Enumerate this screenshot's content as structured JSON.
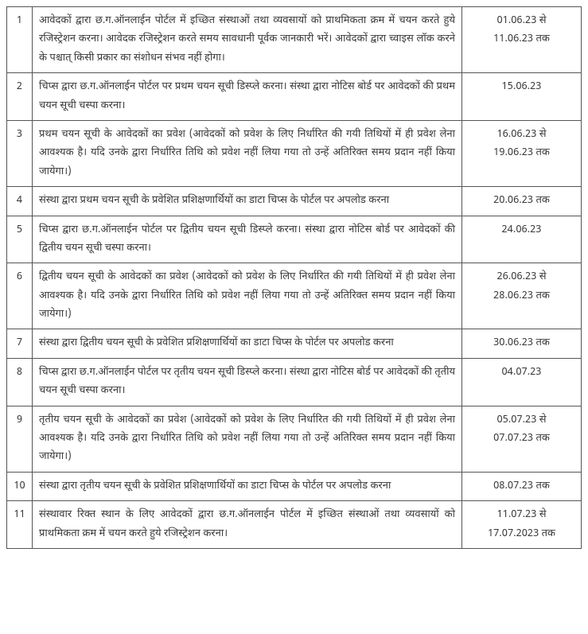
{
  "table": {
    "rows": [
      {
        "sn": "1",
        "desc": "आवेदकों द्वारा छ.ग.ऑनलाईन पोर्टल में इच्छित संस्थाओं तथा व्यवसायों को प्राथमिकता क्रम में चयन करते हुये रजिस्ट्रेशन करना। आवेदक रजिस्ट्रेशन करते समय सावधानी पूर्वक जानकारी भरें। आवेदकों द्वारा च्वाइस लॉक करने के पश्चात् किसी प्रकार का संशोधन संभव नहीं होगा।",
        "date": "01.06.23 से\n11.06.23 तक"
      },
      {
        "sn": "2",
        "desc": "चिप्स द्वारा छ.ग.ऑनलाईन पोर्टल पर प्रथम चयन सूची डिस्प्ले करना। संस्था द्वारा नोटिस बोर्ड पर आवेदकों की प्रथम चयन सूची चस्पा करना।",
        "date": "15.06.23"
      },
      {
        "sn": "3",
        "desc": "प्रथम चयन सूची के आवेदकों का प्रवेश (आवेदकों को प्रवेश के लिए निर्धारित की गयी तिथियों में ही प्रवेश लेना आवश्यक है। यदि उनके द्वारा निर्धारित तिथि को प्रवेश नहीं लिया गया तो उन्हें अतिरिक्त समय प्रदान नहीं किया जायेगा।)",
        "date": "16.06.23 से\n19.06.23 तक"
      },
      {
        "sn": "4",
        "desc": "संस्था द्वारा प्रथम चयन सूची के प्रवेशित प्रशिक्षणार्थियों का डाटा चिप्स के पोर्टल पर अपलोड करना",
        "date": "20.06.23 तक"
      },
      {
        "sn": "5",
        "desc": "चिप्स द्वारा छ.ग.ऑनलाईन पोर्टल पर द्वितीय चयन सूची डिस्प्ले करना। संस्था द्वारा नोटिस बोर्ड पर आवेदकों की द्वितीय चयन सूची चस्पा करना।",
        "date": "24.06.23"
      },
      {
        "sn": "6",
        "desc": "द्वितीय चयन सूची के आवेदकों का प्रवेश (आवेदकों को प्रवेश के लिए निर्धारित की गयी तिथियों में ही प्रवेश लेना आवश्यक है। यदि उनके द्वारा निर्धारित तिथि को प्रवेश नहीं लिया गया तो उन्हें अतिरिक्त समय प्रदान नहीं किया जायेगा।)",
        "date": "26.06.23 से\n28.06.23 तक"
      },
      {
        "sn": "7",
        "desc": "संस्था द्वारा द्वितीय चयन सूची के प्रवेशित प्रशिक्षणार्थियों का डाटा चिप्स के पोर्टल पर अपलोड करना",
        "date": "30.06.23 तक"
      },
      {
        "sn": "8",
        "desc": "चिप्स द्वारा छ.ग.ऑनलाईन पोर्टल पर तृतीय चयन सूची डिस्प्ले करना। संस्था द्वारा नोटिस बोर्ड पर आवेदकों की तृतीय चयन सूची चस्पा करना।",
        "date": "04.07.23"
      },
      {
        "sn": "9",
        "desc": "तृतीय चयन सूची के आवेदकों का प्रवेश (आवेदकों को प्रवेश के लिए निर्धारित की गयी तिथियों में ही प्रवेश लेना आवश्यक है। यदि उनके द्वारा निर्धारित तिथि को प्रवेश नहीं लिया गया तो उन्हें अतिरिक्त समय प्रदान नहीं किया जायेगा।)",
        "date": "05.07.23 से\n07.07.23 तक"
      },
      {
        "sn": "10",
        "desc": "संस्था द्वारा तृतीय चयन सूची के प्रवेशित प्रशिक्षणार्थियों का डाटा चिप्स के पोर्टल पर अपलोड करना",
        "date": "08.07.23 तक"
      },
      {
        "sn": "11",
        "desc": "संस्थावार रिक्त स्थान के लिए आवेदकों द्वारा छ.ग.ऑनलाईन पोर्टल में इच्छित संस्थाओं तथा व्यवसायों को प्राथमिकता क्रम में चयन करते हुये रजिस्ट्रेशन करना।",
        "date": "11.07.23 से\n17.07.2023 तक"
      }
    ]
  }
}
